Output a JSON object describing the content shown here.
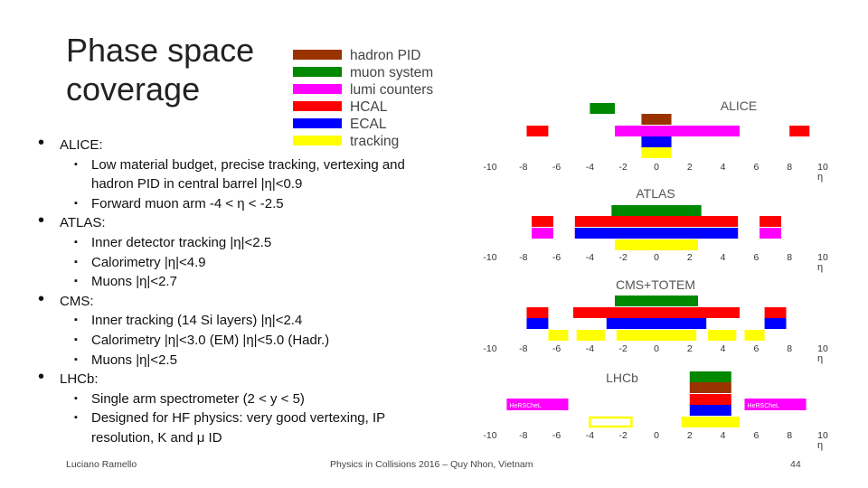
{
  "title_line1": "Phase space",
  "title_line2": "coverage",
  "bullets": [
    {
      "text": "ALICE:",
      "sub": [
        "Low material budget, precise tracking, vertexing and hadron PID in central barrel |η|<0.9",
        "Forward muon arm -4 < η < -2.5"
      ]
    },
    {
      "text": "ATLAS:",
      "sub": [
        "Inner detector tracking |η|<2.5",
        "Calorimetry |η|<4.9",
        "Muons |η|<2.7"
      ]
    },
    {
      "text": "CMS:",
      "sub": [
        "Inner tracking (14 Si layers) |η|<2.4",
        "Calorimetry |η|<3.0 (EM) |η|<5.0 (Hadr.)",
        "Muons |η|<2.5"
      ]
    },
    {
      "text": "LHCb:",
      "sub": [
        "Single arm spectrometer (2 < y < 5)",
        "Designed for HF physics: very good vertexing, IP resolution, K and μ ID"
      ]
    }
  ],
  "footer": {
    "author": "Luciano Ramello",
    "conference": "Physics in Collisions 2016 – Quy Nhon, Vietnam",
    "page": "44"
  },
  "legend": [
    {
      "label": "hadron PID",
      "color": "#993300"
    },
    {
      "label": "muon system",
      "color": "#008800"
    },
    {
      "label": "lumi counters",
      "color": "#ff00ff"
    },
    {
      "label": "HCAL",
      "color": "#ff0000"
    },
    {
      "label": "ECAL",
      "color": "#0000ff"
    },
    {
      "label": "tracking",
      "color": "#ffff00"
    }
  ],
  "chart_data": {
    "type": "bar",
    "xlabel": "η",
    "xlim": [
      -10,
      10
    ],
    "xticks": [
      -10,
      -8,
      -6,
      -4,
      -2,
      0,
      2,
      4,
      6,
      8,
      10
    ],
    "xtick_labels": [
      "-10",
      "-8",
      "-6",
      "-4",
      "-2",
      "0",
      "2",
      "4",
      "6",
      "8",
      "10"
    ],
    "experiments": [
      {
        "name": "ALICE",
        "bars": [
          {
            "system": "muon system",
            "color": "#008800",
            "range": [
              -4.0,
              -2.5
            ]
          },
          {
            "system": "hadron PID",
            "color": "#993300",
            "range": [
              -0.9,
              0.9
            ]
          },
          {
            "system": "lumi counters",
            "color": "#ff00ff",
            "range": [
              -2.5,
              5.0
            ]
          },
          {
            "system": "HCAL",
            "color": "#ff0000",
            "range": [
              -7.8,
              -6.5
            ]
          },
          {
            "system": "HCAL",
            "color": "#ff0000",
            "range": [
              8.0,
              9.2
            ]
          },
          {
            "system": "ECAL",
            "color": "#0000ff",
            "range": [
              -0.9,
              0.9
            ]
          },
          {
            "system": "tracking",
            "color": "#ffff00",
            "range": [
              -0.9,
              0.9
            ]
          }
        ]
      },
      {
        "name": "ATLAS",
        "bars": [
          {
            "system": "muon system",
            "color": "#008800",
            "range": [
              -2.7,
              2.7
            ]
          },
          {
            "system": "HCAL",
            "color": "#ff0000",
            "range": [
              -7.5,
              -6.2
            ]
          },
          {
            "system": "HCAL",
            "color": "#ff0000",
            "range": [
              -4.9,
              4.9
            ]
          },
          {
            "system": "HCAL",
            "color": "#ff0000",
            "range": [
              6.2,
              7.5
            ]
          },
          {
            "system": "lumi counters",
            "color": "#ff00ff",
            "range": [
              -7.5,
              -6.2
            ]
          },
          {
            "system": "lumi counters",
            "color": "#ff00ff",
            "range": [
              -4.9,
              -4.0
            ]
          },
          {
            "system": "lumi counters",
            "color": "#ff00ff",
            "range": [
              4.0,
              4.9
            ]
          },
          {
            "system": "lumi counters",
            "color": "#ff00ff",
            "range": [
              6.2,
              7.5
            ]
          },
          {
            "system": "ECAL",
            "color": "#0000ff",
            "range": [
              -4.9,
              4.9
            ]
          },
          {
            "system": "tracking",
            "color": "#ffff00",
            "range": [
              -2.5,
              2.5
            ]
          }
        ]
      },
      {
        "name": "CMS+TOTEM",
        "bars": [
          {
            "system": "muon system",
            "color": "#008800",
            "range": [
              -2.5,
              2.5
            ]
          },
          {
            "system": "HCAL",
            "color": "#ff0000",
            "range": [
              -7.8,
              -6.5
            ]
          },
          {
            "system": "HCAL",
            "color": "#ff0000",
            "range": [
              -5.0,
              5.0
            ]
          },
          {
            "system": "HCAL",
            "color": "#ff0000",
            "range": [
              6.5,
              7.8
            ]
          },
          {
            "system": "ECAL",
            "color": "#0000ff",
            "range": [
              -7.8,
              -6.5
            ]
          },
          {
            "system": "ECAL",
            "color": "#0000ff",
            "range": [
              -3.0,
              3.0
            ]
          },
          {
            "system": "ECAL",
            "color": "#0000ff",
            "range": [
              6.5,
              7.8
            ]
          },
          {
            "system": "tracking",
            "color": "#ffff00",
            "range": [
              -6.5,
              -5.3
            ]
          },
          {
            "system": "tracking",
            "color": "#ffff00",
            "range": [
              -4.8,
              -3.1
            ]
          },
          {
            "system": "tracking",
            "color": "#ffff00",
            "range": [
              -2.4,
              2.4
            ]
          },
          {
            "system": "tracking",
            "color": "#ffff00",
            "range": [
              3.1,
              4.8
            ]
          },
          {
            "system": "tracking",
            "color": "#ffff00",
            "range": [
              5.3,
              6.5
            ]
          }
        ]
      },
      {
        "name": "LHCb",
        "bars": [
          {
            "system": "muon system",
            "color": "#008800",
            "range": [
              2.0,
              4.5
            ]
          },
          {
            "system": "hadron PID",
            "color": "#993300",
            "range": [
              2.0,
              4.5
            ]
          },
          {
            "system": "HCAL",
            "color": "#ff0000",
            "range": [
              2.0,
              4.5
            ]
          },
          {
            "system": "ECAL",
            "color": "#0000ff",
            "range": [
              2.0,
              4.5
            ]
          },
          {
            "system": "tracking",
            "color": "#ffff00",
            "range": [
              1.5,
              5.0
            ]
          },
          {
            "system": "tracking",
            "color": "#ffff00",
            "range": [
              -4.0,
              -1.5
            ],
            "outline_only": true
          }
        ]
      }
    ],
    "lhcb_boxes": [
      {
        "label": "HeRSCheL",
        "color": "#ff00ff",
        "range": [
          -9.0,
          -5.3
        ]
      },
      {
        "label": "HeRSCheL",
        "color": "#ff00ff",
        "range": [
          5.3,
          9.0
        ]
      }
    ]
  }
}
